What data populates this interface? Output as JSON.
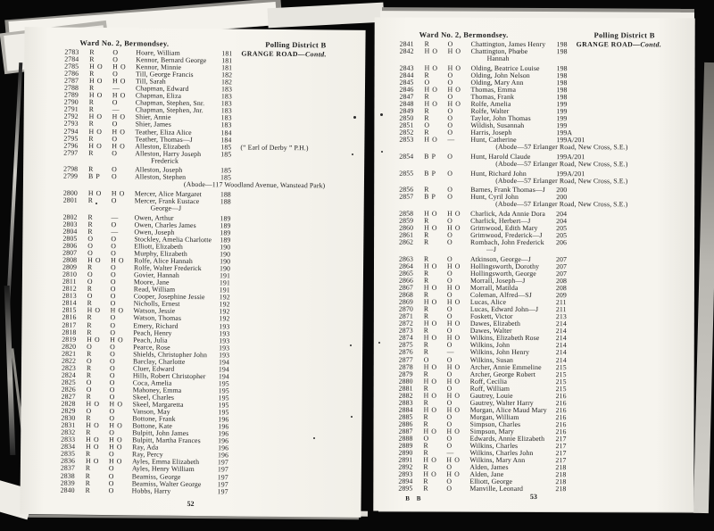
{
  "pages": [
    {
      "id": "left",
      "header": {
        "ward": "Ward No. 2, Bermondsey.",
        "district": "Polling District B"
      },
      "page_number": "52",
      "signature": "",
      "entries": [
        {
          "no": "2783",
          "s1": "R",
          "s2": "O",
          "name": "Hoare, William",
          "house": "181",
          "street": "GRANGE ROAD",
          "street_suffix": "—Contd."
        },
        {
          "no": "2784",
          "s1": "R",
          "s2": "O",
          "name": "Kennor, Bernard George",
          "house": "181"
        },
        {
          "no": "2785",
          "s1": "H O",
          "s2": "H O",
          "name": "Kennor, Minnie",
          "house": "181"
        },
        {
          "no": "2786",
          "s1": "R",
          "s2": "O",
          "name": "Till, George Francis",
          "house": "182"
        },
        {
          "no": "2787",
          "s1": "H O",
          "s2": "H O",
          "name": "Till, Sarah",
          "house": "182"
        },
        {
          "no": "2788",
          "s1": "R",
          "s2": "—",
          "name": "Chapman, Edward",
          "house": "183"
        },
        {
          "no": "2789",
          "s1": "H O",
          "s2": "H O",
          "name": "Chapman, Eliza",
          "house": "183"
        },
        {
          "no": "2790",
          "s1": "R",
          "s2": "O",
          "name": "Chapman, Stephen, Snr.",
          "house": "183"
        },
        {
          "no": "2791",
          "s1": "R",
          "s2": "—",
          "name": "Chapman, Stephen, Jnr.",
          "house": "183"
        },
        {
          "no": "2792",
          "s1": "H O",
          "s2": "H O",
          "name": "Shier, Annie",
          "house": "183"
        },
        {
          "no": "2793",
          "s1": "R",
          "s2": "O",
          "name": "Shier, James",
          "house": "183"
        },
        {
          "no": "2794",
          "s1": "H O",
          "s2": "H O",
          "name": "Teather, Eliza Alice",
          "house": "184"
        },
        {
          "no": "2795",
          "s1": "R",
          "s2": "O",
          "name": "Teather, Thomas—J",
          "house": "184"
        },
        {
          "no": "2796",
          "s1": "H O",
          "s2": "H O",
          "name": "Alleston, Elizabeth",
          "house": "185",
          "note": "(“ Earl of Derby ” P.H.)"
        },
        {
          "no": "2797",
          "s1": "R",
          "s2": "O",
          "name": "Alleston, Harry Joseph",
          "name2": "Frederick",
          "house": "185"
        },
        {
          "no": "2798",
          "s1": "R",
          "s2": "O",
          "name": "Alleston, Joseph",
          "house": "185"
        },
        {
          "no": "2799",
          "s1": "B P",
          "s2": "O",
          "name": "Alleston, Stephen",
          "house": "185",
          "abode": "(Abode—117 Woodland Avenue, Wanstead Park)"
        },
        {
          "no": "2800",
          "s1": "H O",
          "s2": "H O",
          "name": "Mercer, Alice Margaret",
          "house": "188"
        },
        {
          "no": "2801",
          "s1": "R",
          "s2": "O",
          "name": "Mercer, Frank Eustace",
          "name2": "George—J",
          "house": "188"
        },
        {
          "no": "2802",
          "s1": "R",
          "s2": "—",
          "name": "Owen, Arthur",
          "house": "189"
        },
        {
          "no": "2803",
          "s1": "R",
          "s2": "O",
          "name": "Owen, Charles James",
          "house": "189"
        },
        {
          "no": "2804",
          "s1": "R",
          "s2": "—",
          "name": "Owen, Joseph",
          "house": "189"
        },
        {
          "no": "2805",
          "s1": "O",
          "s2": "O",
          "name": "Stockley, Amelia Charlotte",
          "house": "189"
        },
        {
          "no": "2806",
          "s1": "O",
          "s2": "O",
          "name": "Elliott, Elizabeth",
          "house": "190"
        },
        {
          "no": "2807",
          "s1": "O",
          "s2": "O",
          "name": "Murphy, Elizabeth",
          "house": "190"
        },
        {
          "no": "2808",
          "s1": "H O",
          "s2": "H O",
          "name": "Rolfe, Alice Hannah",
          "house": "190"
        },
        {
          "no": "2809",
          "s1": "R",
          "s2": "O",
          "name": "Rolfe, Walter Frederick",
          "house": "190"
        },
        {
          "no": "2810",
          "s1": "O",
          "s2": "O",
          "name": "Govier, Hannah",
          "house": "191"
        },
        {
          "no": "2811",
          "s1": "O",
          "s2": "O",
          "name": "Moore, Jane",
          "house": "191"
        },
        {
          "no": "2812",
          "s1": "R",
          "s2": "O",
          "name": "Read, William",
          "house": "191"
        },
        {
          "no": "2813",
          "s1": "O",
          "s2": "O",
          "name": "Cooper, Josephine Jessie",
          "house": "192"
        },
        {
          "no": "2814",
          "s1": "R",
          "s2": "O",
          "name": "Nicholls, Ernest",
          "house": "192"
        },
        {
          "no": "2815",
          "s1": "H O",
          "s2": "H O",
          "name": "Watson, Jessie",
          "house": "192"
        },
        {
          "no": "2816",
          "s1": "R",
          "s2": "O",
          "name": "Watson, Thomas",
          "house": "192"
        },
        {
          "no": "2817",
          "s1": "R",
          "s2": "O",
          "name": "Emery, Richard",
          "house": "193"
        },
        {
          "no": "2818",
          "s1": "R",
          "s2": "O",
          "name": "Peach, Henry",
          "house": "193"
        },
        {
          "no": "2819",
          "s1": "H O",
          "s2": "H O",
          "name": "Peach, Julia",
          "house": "193"
        },
        {
          "no": "2820",
          "s1": "O",
          "s2": "O",
          "name": "Pearce, Rose",
          "house": "193"
        },
        {
          "no": "2821",
          "s1": "R",
          "s2": "O",
          "name": "Shields, Christopher John",
          "house": "193"
        },
        {
          "no": "2822",
          "s1": "O",
          "s2": "O",
          "name": "Barclay, Charlotte",
          "house": "194"
        },
        {
          "no": "2823",
          "s1": "R",
          "s2": "O",
          "name": "Cluer, Edward",
          "house": "194"
        },
        {
          "no": "2824",
          "s1": "R",
          "s2": "O",
          "name": "Hills, Robert Christopher",
          "house": "194"
        },
        {
          "no": "2825",
          "s1": "O",
          "s2": "O",
          "name": "Coca, Amelia",
          "house": "195"
        },
        {
          "no": "2826",
          "s1": "O",
          "s2": "O",
          "name": "Mahoney, Emma",
          "house": "195"
        },
        {
          "no": "2827",
          "s1": "R",
          "s2": "O",
          "name": "Skeel, Charles",
          "house": "195"
        },
        {
          "no": "2828",
          "s1": "H O",
          "s2": "H O",
          "name": "Skeel, Margaretta",
          "house": "195"
        },
        {
          "no": "2829",
          "s1": "O",
          "s2": "O",
          "name": "Vanson, May",
          "house": "195"
        },
        {
          "no": "2830",
          "s1": "R",
          "s2": "O",
          "name": "Bottone, Frank",
          "house": "196"
        },
        {
          "no": "2831",
          "s1": "H O",
          "s2": "H O",
          "name": "Bottone, Kate",
          "house": "196"
        },
        {
          "no": "2832",
          "s1": "R",
          "s2": "O",
          "name": "Bulpitt, John James",
          "house": "196"
        },
        {
          "no": "2833",
          "s1": "H O",
          "s2": "H O",
          "name": "Bulpitt, Martha Frances",
          "house": "196"
        },
        {
          "no": "2834",
          "s1": "H O",
          "s2": "H O",
          "name": "Ray, Ada",
          "house": "196"
        },
        {
          "no": "2835",
          "s1": "R",
          "s2": "O",
          "name": "Ray, Percy",
          "house": "196"
        },
        {
          "no": "2836",
          "s1": "H O",
          "s2": "H O",
          "name": "Ayles, Emma Elizabeth",
          "house": "197"
        },
        {
          "no": "2837",
          "s1": "R",
          "s2": "O",
          "name": "Ayles, Henry William",
          "house": "197"
        },
        {
          "no": "2838",
          "s1": "R",
          "s2": "O",
          "name": "Beamiss, George",
          "house": "197"
        },
        {
          "no": "2839",
          "s1": "R",
          "s2": "O",
          "name": "Beamiss, Walter George",
          "house": "197"
        },
        {
          "no": "2840",
          "s1": "R",
          "s2": "O",
          "name": "Hobbs, Harry",
          "house": "197"
        }
      ]
    },
    {
      "id": "right",
      "header": {
        "ward": "Ward No. 2, Bermondsey.",
        "district": "Polling District B"
      },
      "page_number": "53",
      "signature": "B B",
      "entries": [
        {
          "no": "2841",
          "s1": "R",
          "s2": "O",
          "name": "Chattington, James Henry",
          "house": "198",
          "street": "GRANGE ROAD",
          "street_suffix": "—Contd."
        },
        {
          "no": "2842",
          "s1": "H O",
          "s2": "H O",
          "name": "Chattington, Phœbe",
          "name2": "Hannah",
          "house": "198"
        },
        {
          "no": "2843",
          "s1": "H O",
          "s2": "H O",
          "name": "Olding, Beatrice Louise",
          "house": "198"
        },
        {
          "no": "2844",
          "s1": "R",
          "s2": "O",
          "name": "Olding, John Nelson",
          "house": "198"
        },
        {
          "no": "2845",
          "s1": "O",
          "s2": "O",
          "name": "Olding, Mary Ann",
          "house": "198"
        },
        {
          "no": "2846",
          "s1": "H O",
          "s2": "H O",
          "name": "Thomas, Emma",
          "house": "198"
        },
        {
          "no": "2847",
          "s1": "R",
          "s2": "O",
          "name": "Thomas, Frank",
          "house": "198"
        },
        {
          "no": "2848",
          "s1": "H O",
          "s2": "H O",
          "name": "Rolfe, Amelia",
          "house": "199"
        },
        {
          "no": "2849",
          "s1": "R",
          "s2": "O",
          "name": "Rolfe, Walter",
          "house": "199"
        },
        {
          "no": "2850",
          "s1": "R",
          "s2": "O",
          "name": "Taylor, John Thomas",
          "house": "199"
        },
        {
          "no": "2851",
          "s1": "O",
          "s2": "O",
          "name": "Wildish, Susannah",
          "house": "199"
        },
        {
          "no": "2852",
          "s1": "R",
          "s2": "O",
          "name": "Harris, Joseph",
          "house": "199A"
        },
        {
          "no": "2853",
          "s1": "H O",
          "s2": "—",
          "name": "Hunt, Catherine",
          "house": "199A/201",
          "abode": "(Abode—57 Erlanger Road, New Cross, S.E.)"
        },
        {
          "no": "2854",
          "s1": "B P",
          "s2": "O",
          "name": "Hunt, Harold Claude",
          "house": "199A/201",
          "abode": "(Abode—57 Erlanger Road, New Cross, S.E.)"
        },
        {
          "no": "2855",
          "s1": "B P",
          "s2": "O",
          "name": "Hunt, Richard John",
          "house": "199A/201",
          "abode": "(Abode—57 Erlanger Road, New Cross, S.E.)"
        },
        {
          "no": "2856",
          "s1": "R",
          "s2": "O",
          "name": "Barnes, Frank Thomas—J",
          "house": "200"
        },
        {
          "no": "2857",
          "s1": "B P",
          "s2": "O",
          "name": "Hunt, Cyril John",
          "house": "200",
          "abode": "(Abode—57 Erlanger Road, New Cross, S.E.)"
        },
        {
          "no": "2858",
          "s1": "H O",
          "s2": "H O",
          "name": "Charlick, Ada Annie Dora",
          "house": "204"
        },
        {
          "no": "2859",
          "s1": "R",
          "s2": "O",
          "name": "Charlick, Herbert—J",
          "house": "204"
        },
        {
          "no": "2860",
          "s1": "H O",
          "s2": "H O",
          "name": "Grimwood, Edith Mary",
          "house": "205"
        },
        {
          "no": "2861",
          "s1": "R",
          "s2": "O",
          "name": "Grimwood, Frederick—J",
          "house": "205"
        },
        {
          "no": "2862",
          "s1": "R",
          "s2": "O",
          "name": "Rombach, John Frederick",
          "name2": "—J",
          "house": "206"
        },
        {
          "no": "2863",
          "s1": "R",
          "s2": "O",
          "name": "Atkinson, George—J",
          "house": "207"
        },
        {
          "no": "2864",
          "s1": "H O",
          "s2": "H O",
          "name": "Hollingsworth, Dorothy",
          "house": "207"
        },
        {
          "no": "2865",
          "s1": "R",
          "s2": "O",
          "name": "Hollingsworth, George",
          "house": "207"
        },
        {
          "no": "2866",
          "s1": "R",
          "s2": "O",
          "name": "Morrall, Joseph—J",
          "house": "208"
        },
        {
          "no": "2867",
          "s1": "H O",
          "s2": "H O",
          "name": "Morrall, Matilda",
          "house": "208"
        },
        {
          "no": "2868",
          "s1": "R",
          "s2": "O",
          "name": "Coleman, Alfred—SJ",
          "house": "209"
        },
        {
          "no": "2869",
          "s1": "H O",
          "s2": "H O",
          "name": "Lucas, Alice",
          "house": "211"
        },
        {
          "no": "2870",
          "s1": "R",
          "s2": "O",
          "name": "Lucas, Edward John—J",
          "house": "211"
        },
        {
          "no": "2871",
          "s1": "R",
          "s2": "O",
          "name": "Foskett, Victor",
          "house": "213"
        },
        {
          "no": "2872",
          "s1": "H O",
          "s2": "H O",
          "name": "Dawes, Elizabeth",
          "house": "214"
        },
        {
          "no": "2873",
          "s1": "R",
          "s2": "O",
          "name": "Dawes, Walter",
          "house": "214"
        },
        {
          "no": "2874",
          "s1": "H O",
          "s2": "H O",
          "name": "Wilkins, Elizabeth Rose",
          "house": "214"
        },
        {
          "no": "2875",
          "s1": "R",
          "s2": "O",
          "name": "Wilkins, John",
          "house": "214"
        },
        {
          "no": "2876",
          "s1": "R",
          "s2": "—",
          "name": "Wilkins, John Henry",
          "house": "214"
        },
        {
          "no": "2877",
          "s1": "O",
          "s2": "O",
          "name": "Wilkins, Susan",
          "house": "214"
        },
        {
          "no": "2878",
          "s1": "H O",
          "s2": "H O",
          "name": "Archer, Annie Emmeline",
          "house": "215"
        },
        {
          "no": "2879",
          "s1": "R",
          "s2": "O",
          "name": "Archer, George Robert",
          "house": "215"
        },
        {
          "no": "2880",
          "s1": "H O",
          "s2": "H O",
          "name": "Roff, Cecilia",
          "house": "215"
        },
        {
          "no": "2881",
          "s1": "R",
          "s2": "O",
          "name": "Roff, William",
          "house": "215"
        },
        {
          "no": "2882",
          "s1": "H O",
          "s2": "H O",
          "name": "Gautrey, Louie",
          "house": "216"
        },
        {
          "no": "2883",
          "s1": "R",
          "s2": "O",
          "name": "Gautrey, Walter Harry",
          "house": "216"
        },
        {
          "no": "2884",
          "s1": "H O",
          "s2": "H O",
          "name": "Morgan, Alice Maud Mary",
          "house": "216"
        },
        {
          "no": "2885",
          "s1": "R",
          "s2": "O",
          "name": "Morgan, William",
          "house": "216"
        },
        {
          "no": "2886",
          "s1": "R",
          "s2": "O",
          "name": "Simpson, Charles",
          "house": "216"
        },
        {
          "no": "2887",
          "s1": "H O",
          "s2": "H O",
          "name": "Simpson, Mary",
          "house": "216"
        },
        {
          "no": "2888",
          "s1": "O",
          "s2": "O",
          "name": "Edwards, Annie Elizabeth",
          "house": "217"
        },
        {
          "no": "2889",
          "s1": "R",
          "s2": "O",
          "name": "Wilkins, Charles",
          "house": "217"
        },
        {
          "no": "2890",
          "s1": "R",
          "s2": "—",
          "name": "Wilkins, Charles John",
          "house": "217"
        },
        {
          "no": "2891",
          "s1": "H O",
          "s2": "H O",
          "name": "Wilkins, Mary Ann",
          "house": "217"
        },
        {
          "no": "2892",
          "s1": "R",
          "s2": "O",
          "name": "Alden, James",
          "house": "218"
        },
        {
          "no": "2893",
          "s1": "H O",
          "s2": "H O",
          "name": "Alden, Jane",
          "house": "218"
        },
        {
          "no": "2894",
          "s1": "R",
          "s2": "O",
          "name": "Elliott, George",
          "house": "218"
        },
        {
          "no": "2895",
          "s1": "R",
          "s2": "O",
          "name": "Manville, Leonard",
          "house": "218"
        }
      ]
    }
  ]
}
